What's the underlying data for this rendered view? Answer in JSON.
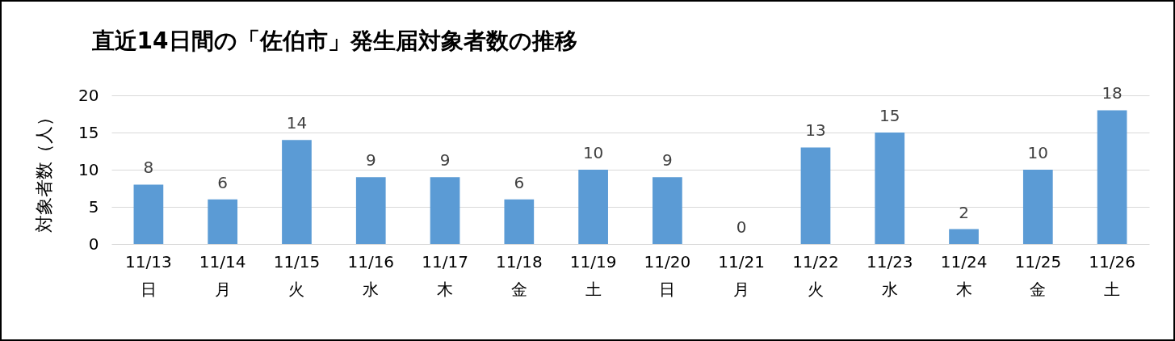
{
  "chart_data": {
    "type": "bar",
    "title": "直近14日間の「佐伯市」発生届対象者数の推移",
    "ylabel": "対象者数（人）",
    "categories": [
      "11/13\n日",
      "11/14\n月",
      "11/15\n火",
      "11/16\n水",
      "11/17\n木",
      "11/18\n金",
      "11/19\n土",
      "11/20\n日",
      "11/21\n月",
      "11/22\n火",
      "11/23\n水",
      "11/24\n木",
      "11/25\n金",
      "11/26\n土"
    ],
    "values": [
      8,
      6,
      14,
      9,
      9,
      6,
      10,
      9,
      0,
      13,
      15,
      2,
      10,
      18
    ],
    "color": "#5b9bd5",
    "ylim": [
      0,
      20
    ],
    "yticks": [
      0,
      5,
      10,
      15,
      20
    ],
    "grid": "y",
    "data_labels": true
  }
}
